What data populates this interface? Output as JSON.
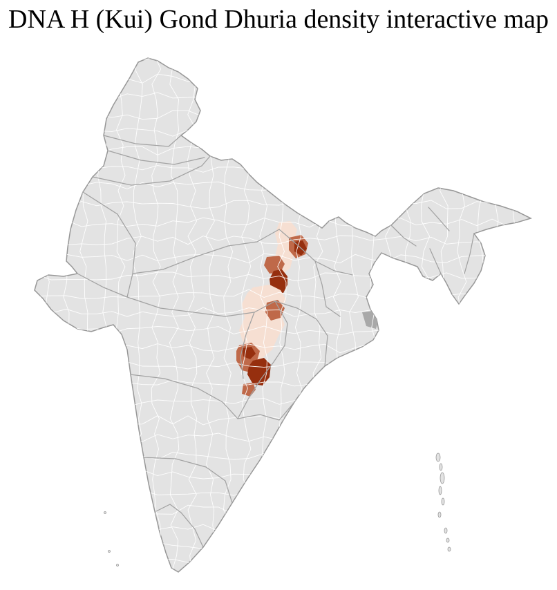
{
  "page": {
    "title": "DNA H (Kui) Gond Dhuria density interactive map",
    "background": "#ffffff"
  },
  "map": {
    "label": "india-district-density-choropleth",
    "base_fill": "#e3e3e3",
    "island_fill": "#e3e3e3",
    "district_line": "#ffffff",
    "state_line": "#a2a2a2",
    "outline": "#979797",
    "gray_patch": "#a9a9a9",
    "colors": {
      "low": "#f6dfd2",
      "medium": "#bf6949",
      "high": "#962f0e"
    },
    "regions": [
      {
        "id": "region-1",
        "density": "low"
      },
      {
        "id": "region-2",
        "density": "medium"
      },
      {
        "id": "region-3",
        "density": "high"
      },
      {
        "id": "region-4",
        "density": "medium"
      },
      {
        "id": "region-5",
        "density": "high"
      },
      {
        "id": "region-6",
        "density": "low"
      },
      {
        "id": "region-7",
        "density": "medium"
      },
      {
        "id": "region-8",
        "density": "medium"
      },
      {
        "id": "region-9",
        "density": "high"
      },
      {
        "id": "region-10",
        "density": "high"
      },
      {
        "id": "region-11",
        "density": "medium"
      }
    ]
  }
}
